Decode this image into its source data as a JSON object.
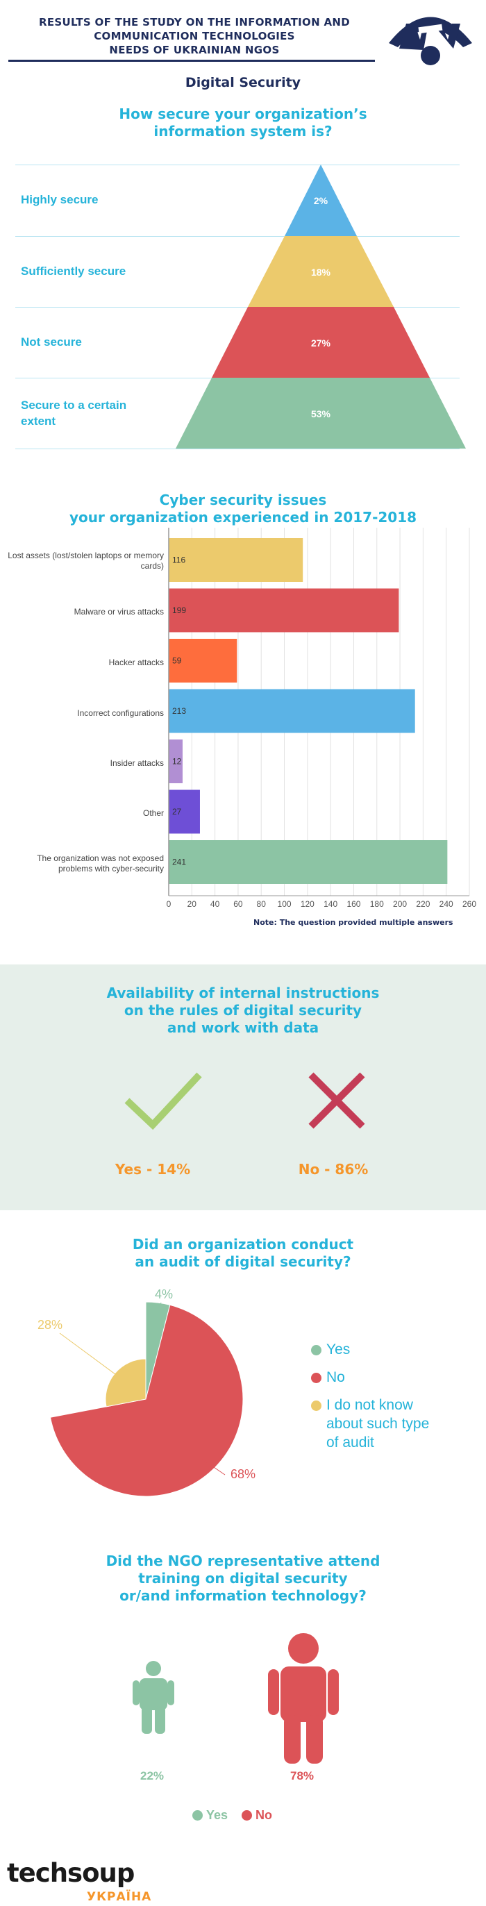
{
  "header": {
    "title_lines": [
      "RESULTS OF THE STUDY ON THE INFORMATION AND",
      "COMMUNICATION TECHNOLOGIES",
      "NEEDS OF UKRAINIAN NGOS"
    ],
    "section_title": "Digital Security"
  },
  "q1": {
    "title_lines": [
      "How secure your organization’s",
      "information system is?"
    ]
  },
  "q2": {
    "title_lines": [
      "Cyber security issues",
      "your organization experienced in 2017-2018"
    ],
    "note": "Note: The question provided multiple answers"
  },
  "q3": {
    "title_lines": [
      "Availability of internal instructions",
      "on the rules of digital security",
      "and work with data"
    ],
    "yes_label": "Yes - 14%",
    "no_label": "No - 86%"
  },
  "q4": {
    "title_lines": [
      "Did an organization conduct",
      "an audit of digital security?"
    ],
    "legend": [
      "Yes",
      "No",
      "I do not know about such type of audit"
    ]
  },
  "q5": {
    "title_lines": [
      "Did the NGO representative attend",
      "training on digital security",
      "or/and information technology?"
    ],
    "legend_yes": "Yes",
    "legend_no": "No"
  },
  "footer": {
    "logo_text": "techsoup",
    "logo_sub": "УКРАЇНА"
  },
  "colors": {
    "navy": "#1f2d5c",
    "cyan": "#25b3d9",
    "orange": "#f5962b",
    "green": "#8cc4a4",
    "red": "#dc5357",
    "yellow": "#ecca6c",
    "blue": "#5bb3e6",
    "purple": "#b18fd3",
    "violet": "#6e4fd6",
    "hacker": "#fe6d3d"
  },
  "chart_data": [
    {
      "type": "pyramid",
      "title": "How secure your organization’s information system is?",
      "categories": [
        "Highly secure",
        "Sufficiently secure",
        "Not secure",
        "Secure to a certain extent"
      ],
      "values": [
        2,
        18,
        27,
        53
      ],
      "value_labels": [
        "2%",
        "18%",
        "27%",
        "53%"
      ],
      "colors": [
        "#5bb3e6",
        "#ecca6c",
        "#dc5357",
        "#8cc4a4"
      ]
    },
    {
      "type": "bar",
      "orientation": "horizontal",
      "title": "Cyber security issues your organization experienced in 2017-2018",
      "categories": [
        "Lost assets (lost/stolen laptops or memory cards)",
        "Malware or virus attacks",
        "Hacker attacks",
        "Incorrect configurations",
        "Insider attacks",
        "Other",
        "The organization was not exposed problems with cyber-security"
      ],
      "values": [
        116,
        199,
        59,
        213,
        12,
        27,
        241
      ],
      "colors": [
        "#ecca6c",
        "#dc5357",
        "#fe6d3d",
        "#5bb3e6",
        "#b18fd3",
        "#6e4fd6",
        "#8cc4a4"
      ],
      "xlim": [
        0,
        260
      ],
      "xticks": [
        0,
        20,
        40,
        60,
        80,
        100,
        120,
        140,
        160,
        180,
        200,
        220,
        240,
        260
      ],
      "grid": true
    },
    {
      "type": "pie",
      "title": "Did an organization conduct an audit of digital security?",
      "categories": [
        "Yes",
        "No",
        "I do not know about such type of audit"
      ],
      "values": [
        4,
        68,
        28
      ],
      "value_labels": [
        "4%",
        "68%",
        "28%"
      ],
      "colors": [
        "#8cc4a4",
        "#dc5357",
        "#ecca6c"
      ],
      "legend": "right"
    },
    {
      "type": "pictogram",
      "title": "Did the NGO representative attend training on digital security or/and information technology?",
      "categories": [
        "Yes",
        "No"
      ],
      "values": [
        22,
        78
      ],
      "value_labels": [
        "22%",
        "78%"
      ],
      "colors": [
        "#8cc4a4",
        "#dc5357"
      ],
      "legend": "bottom"
    }
  ]
}
